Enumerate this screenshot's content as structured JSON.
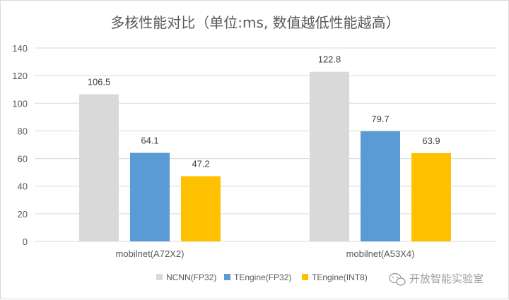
{
  "chart_data": {
    "type": "bar",
    "title": "多核性能对比（单位:ms, 数值越低性能越高）",
    "categories": [
      "mobilnet(A72X2)",
      "mobilnet(A53X4)"
    ],
    "series": [
      {
        "name": "NCNN(FP32)",
        "color": "#d9d9d9",
        "values": [
          106.5,
          122.8
        ]
      },
      {
        "name": "TEngine(FP32)",
        "color": "#5b9bd5",
        "values": [
          64.1,
          79.7
        ]
      },
      {
        "name": "TEngine(INT8)",
        "color": "#ffc000",
        "values": [
          47.2,
          63.9
        ]
      }
    ],
    "value_labels": [
      [
        "106.5",
        "122.8"
      ],
      [
        "64.1",
        "79.7"
      ],
      [
        "47.2",
        "63.9"
      ]
    ],
    "y_ticks": [
      "0",
      "20",
      "40",
      "60",
      "80",
      "100",
      "120",
      "140"
    ],
    "ylim": [
      0,
      140
    ],
    "grid": true,
    "legend_position": "bottom",
    "xlabel": "",
    "ylabel": ""
  },
  "watermark": {
    "text": "开放智能实验室",
    "icon": "wechat-icon"
  }
}
